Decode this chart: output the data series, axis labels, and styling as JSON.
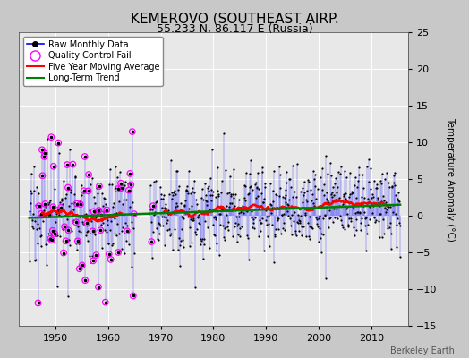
{
  "title": "KEMEROVO (SOUTHEAST AIRP.",
  "subtitle": "55.233 N, 86.117 E (Russia)",
  "ylabel": "Temperature Anomaly (°C)",
  "credit": "Berkeley Earth",
  "xlim": [
    1943,
    2017
  ],
  "ylim": [
    -15,
    25
  ],
  "yticks": [
    -15,
    -10,
    -5,
    0,
    5,
    10,
    15,
    20,
    25
  ],
  "xticks": [
    1950,
    1960,
    1970,
    1980,
    1990,
    2000,
    2010
  ],
  "fig_bg_color": "#c8c8c8",
  "plot_bg_color": "#e8e8e8",
  "seed": 17
}
